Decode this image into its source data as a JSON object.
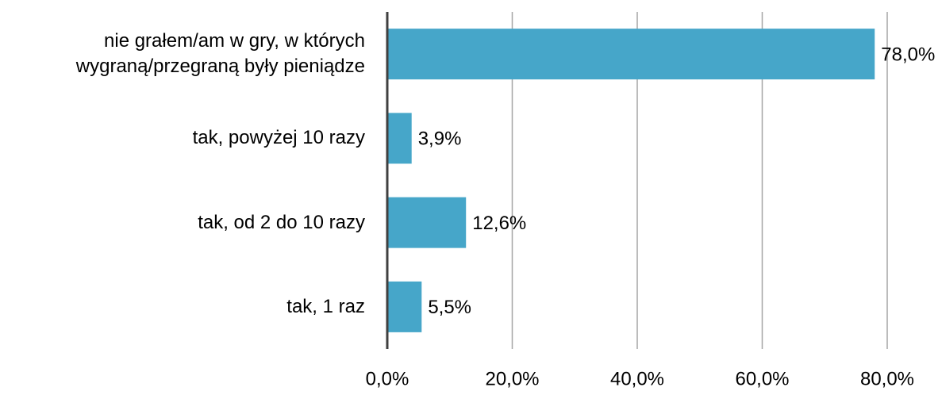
{
  "chart_data": {
    "type": "bar",
    "orientation": "horizontal",
    "categories": [
      "nie grałem/am w gry, w których wygraną/przegraną były pieniądze",
      "tak, powyżej 10 razy",
      "tak, od 2 do 10 razy",
      "tak, 1 raz"
    ],
    "values": [
      78.0,
      3.9,
      12.6,
      5.5
    ],
    "value_labels": [
      "78,0%",
      "3,9%",
      "12,6%",
      "5,5%"
    ],
    "color": "#46a6c9",
    "xlim": [
      0,
      80
    ],
    "xticks": [
      {
        "value": 0,
        "label": "0,0%"
      },
      {
        "value": 20,
        "label": "20,0%"
      },
      {
        "value": 40,
        "label": "40,0%"
      },
      {
        "value": 60,
        "label": "60,0%"
      },
      {
        "value": 80,
        "label": "80,0%"
      }
    ],
    "grid": true
  }
}
